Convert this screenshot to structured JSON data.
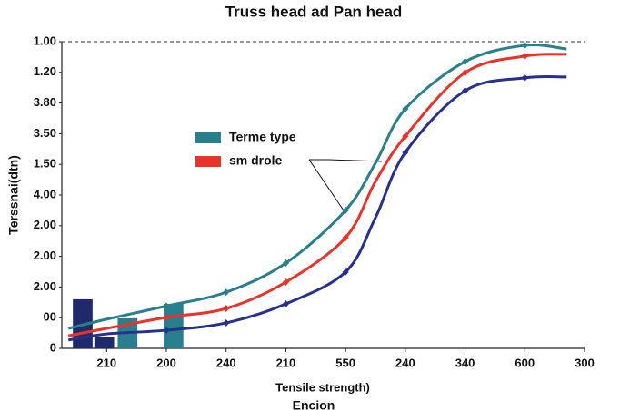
{
  "chart_data": {
    "type": "line",
    "title": "Truss head ad Pan head",
    "x_label": "Tensile strength)",
    "y_label": "Terssnai(dtn)",
    "annotations": [
      "Encion"
    ],
    "xlim": [
      0.25,
      9
    ],
    "xticks": [
      {
        "value": 1,
        "label": "210"
      },
      {
        "value": 2,
        "label": "200"
      },
      {
        "value": 3,
        "label": "240"
      },
      {
        "value": 4,
        "label": "210"
      },
      {
        "value": 5,
        "label": "550"
      },
      {
        "value": 6,
        "label": "240"
      },
      {
        "value": 7,
        "label": "340"
      },
      {
        "value": 8,
        "label": "600"
      },
      {
        "value": 9,
        "label": "300"
      }
    ],
    "ylim": [
      0,
      10
    ],
    "yticks": [
      {
        "value": 0,
        "label": "0"
      },
      {
        "value": 1,
        "label": "00"
      },
      {
        "value": 2,
        "label": "2.00"
      },
      {
        "value": 3,
        "label": "2.00"
      },
      {
        "value": 4,
        "label": "2.00"
      },
      {
        "value": 5,
        "label": "4.00"
      },
      {
        "value": 6,
        "label": "1.50"
      },
      {
        "value": 7,
        "label": "3.50"
      },
      {
        "value": 8,
        "label": "3.80"
      },
      {
        "value": 9,
        "label": "1.20"
      },
      {
        "value": 10,
        "label": "1.00"
      }
    ],
    "x": [
      0.36,
      1,
      2,
      3,
      4,
      5,
      5.5,
      6,
      7,
      8,
      8.7
    ],
    "series": [
      {
        "name": "Terme type",
        "color": "#2a7f8f",
        "values": [
          0.65,
          0.95,
          1.38,
          1.83,
          2.78,
          4.5,
          6.04,
          7.81,
          9.35,
          9.88,
          9.76
        ]
      },
      {
        "name": "sm drole",
        "color": "#e8332a",
        "values": [
          0.41,
          0.65,
          1.01,
          1.3,
          2.16,
          3.61,
          5.44,
          6.92,
          8.99,
          9.53,
          9.59
        ]
      },
      {
        "color": "#27308c",
        "values": [
          0.27,
          0.47,
          0.59,
          0.83,
          1.45,
          2.49,
          4.26,
          6.39,
          8.4,
          8.82,
          8.85
        ]
      }
    ],
    "bars": {
      "x": [
        0.6,
        0.96,
        1.35,
        2.12
      ],
      "values": [
        1.6,
        0.36,
        0.98,
        1.45
      ],
      "colors": [
        "#1f2a6b",
        "#1f2a6b",
        "#2a7f8f",
        "#2a7f8f"
      ],
      "width": 0.33
    }
  }
}
